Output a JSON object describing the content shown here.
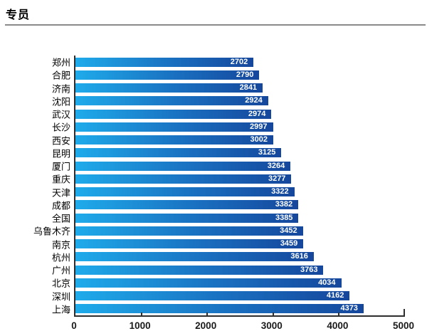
{
  "header": {
    "title": "专员"
  },
  "chart_data": {
    "type": "bar",
    "orientation": "horizontal",
    "title": "专员",
    "categories": [
      "郑州",
      "合肥",
      "济南",
      "沈阳",
      "武汉",
      "长沙",
      "西安",
      "昆明",
      "厦门",
      "重庆",
      "天津",
      "成都",
      "全国",
      "乌鲁木齐",
      "南京",
      "杭州",
      "广州",
      "北京",
      "深圳",
      "上海"
    ],
    "values": [
      2702,
      2790,
      2841,
      2924,
      2974,
      2997,
      3002,
      3125,
      3264,
      3277,
      3322,
      3382,
      3385,
      3452,
      3459,
      3616,
      3763,
      4034,
      4162,
      4373
    ],
    "xlabel": "",
    "ylabel": "",
    "xlim": [
      0,
      5000
    ],
    "x_ticks": [
      0,
      1000,
      2000,
      3000,
      4000,
      5000
    ],
    "value_label_position": "inside-end",
    "grid": false,
    "legend": false,
    "colors": {
      "bar_gradient_start": "#1fabeb",
      "bar_gradient_mid": "#1a6fc0",
      "bar_gradient_end": "#15479c",
      "value_label": "#ffffff",
      "axis_line": "#2e2e2e",
      "tick_label": "#1a1a1a",
      "category_label": "#000000",
      "title_divider": "#8a8a8a",
      "background": "#ffffff"
    }
  }
}
